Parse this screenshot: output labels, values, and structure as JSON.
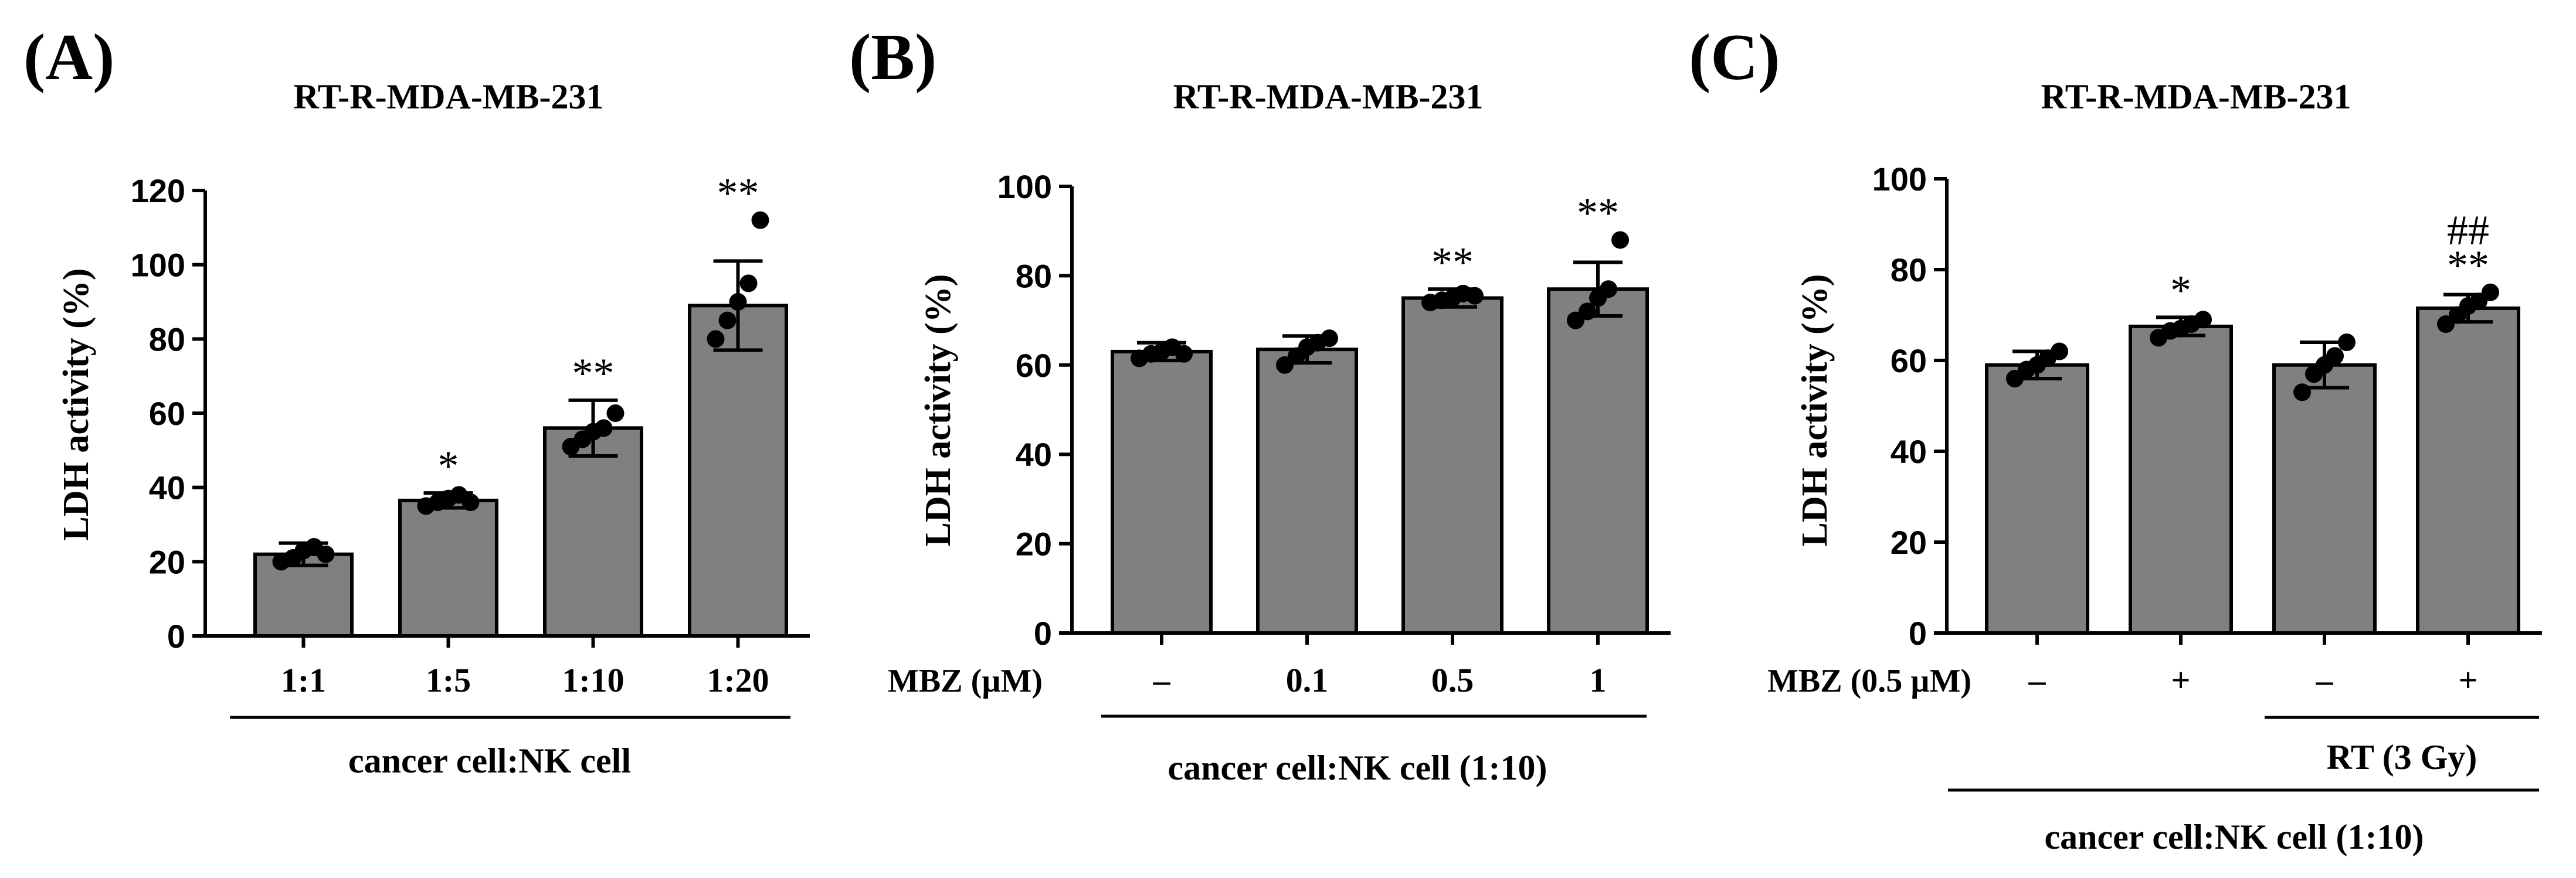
{
  "chart_data": [
    {
      "type": "bar",
      "panel": "(A)",
      "title": "RT-R-MDA-MB-231",
      "ylabel": "LDH  activity  (%)",
      "ylim": [
        0,
        120
      ],
      "yticks": [
        "0",
        "20",
        "40",
        "60",
        "80",
        "100",
        "120"
      ],
      "categories": [
        "1:1",
        "1:5",
        "1:10",
        "1:20"
      ],
      "values": [
        22,
        36.5,
        56,
        89
      ],
      "errors": [
        3,
        2,
        7.5,
        12
      ],
      "points": [
        [
          20,
          21,
          23,
          24,
          22
        ],
        [
          35,
          36,
          37,
          38,
          36
        ],
        [
          51,
          53,
          55,
          56,
          60
        ],
        [
          80,
          85,
          90,
          95,
          112
        ]
      ],
      "significance": [
        "",
        "*",
        "**",
        "**"
      ],
      "group_label": "cancer cell:NK cell"
    },
    {
      "type": "bar",
      "panel": "(B)",
      "title": "RT-R-MDA-MB-231",
      "ylabel": "LDH  activity  (%)",
      "ylim": [
        0,
        100
      ],
      "yticks": [
        "0",
        "20",
        "40",
        "60",
        "80",
        "100"
      ],
      "row_label": "MBZ (µM)",
      "categories": [
        "–",
        "0.1",
        "0.5",
        "1"
      ],
      "values": [
        63,
        63.5,
        75,
        77
      ],
      "errors": [
        2,
        3,
        2,
        6
      ],
      "points": [
        [
          61.5,
          62.5,
          63,
          64,
          62.5
        ],
        [
          60,
          62,
          64,
          65,
          66
        ],
        [
          74,
          74.5,
          75,
          76,
          75.5
        ],
        [
          70,
          72,
          75,
          77,
          88
        ]
      ],
      "significance": [
        "",
        "",
        "**",
        "**"
      ],
      "group_label": "cancer cell:NK cell  (1:10)"
    },
    {
      "type": "bar",
      "panel": "(C)",
      "title": "RT-R-MDA-MB-231",
      "ylabel": "LDH  activity  (%)",
      "ylim": [
        0,
        100
      ],
      "yticks": [
        "0",
        "20",
        "40",
        "60",
        "80",
        "100"
      ],
      "row_label": "MBZ (0.5 µM)",
      "categories": [
        "–",
        "+",
        "–",
        "+"
      ],
      "values": [
        59,
        67.5,
        59,
        71.5
      ],
      "errors": [
        3,
        2,
        5,
        3
      ],
      "points": [
        [
          56,
          58,
          59,
          60.5,
          62
        ],
        [
          65,
          66.5,
          67,
          68,
          69
        ],
        [
          53,
          57,
          59,
          61,
          64
        ],
        [
          68,
          70,
          72,
          73,
          75
        ]
      ],
      "significance": [
        "",
        "*",
        "",
        "**"
      ],
      "significance2": [
        "",
        "",
        "",
        "##"
      ],
      "subgroup_label": "RT (3 Gy)",
      "group_label": "cancer cell:NK cell  (1:10)"
    }
  ]
}
